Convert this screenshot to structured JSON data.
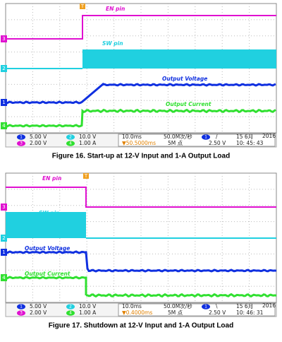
{
  "figures": [
    {
      "caption": "Figure 16. Start-up at 12-V Input and 1-A Output Load",
      "trigger_marker": "T",
      "labels": {
        "en": "EN pin",
        "sw": "SW pin",
        "vout": "Output Voltage",
        "iout": "Output Current"
      },
      "channels": [
        {
          "number": "1",
          "scale": "5.00 V"
        },
        {
          "number": "2",
          "scale": "10.0 V"
        },
        {
          "number": "3",
          "scale": "2.00 V"
        },
        {
          "number": "4",
          "scale": "1.00 A"
        }
      ],
      "timebase": "10.0ms",
      "trigger_delay": "▼50.5000ms",
      "sample_rate": "50.0M次/秒",
      "record_length": "5M 点",
      "trigger_source": "1",
      "trigger_slope": "/",
      "trigger_level": "2.50 V",
      "date": "15 6月",
      "year": "2016",
      "time": "10: 45: 43"
    },
    {
      "caption": "Figure 17. Shutdown at 12-V Input and 1-A Output Load",
      "trigger_marker": "T",
      "labels": {
        "en": "EN pin",
        "sw": "SW pin",
        "vout": "Output Voltage",
        "iout": "Output Current"
      },
      "channels": [
        {
          "number": "1",
          "scale": "5.00 V"
        },
        {
          "number": "2",
          "scale": "10.0 V"
        },
        {
          "number": "3",
          "scale": "2.00 V"
        },
        {
          "number": "4",
          "scale": "1.00 A"
        }
      ],
      "timebase": "10.0ms",
      "trigger_delay": "▼0.4000ms",
      "sample_rate": "50.0M次/秒",
      "record_length": "5M 点",
      "trigger_source": "1",
      "trigger_slope": "\\",
      "trigger_level": "2.50 V",
      "date": "15 6月",
      "year": "2016",
      "time": "10: 46: 31"
    }
  ]
}
